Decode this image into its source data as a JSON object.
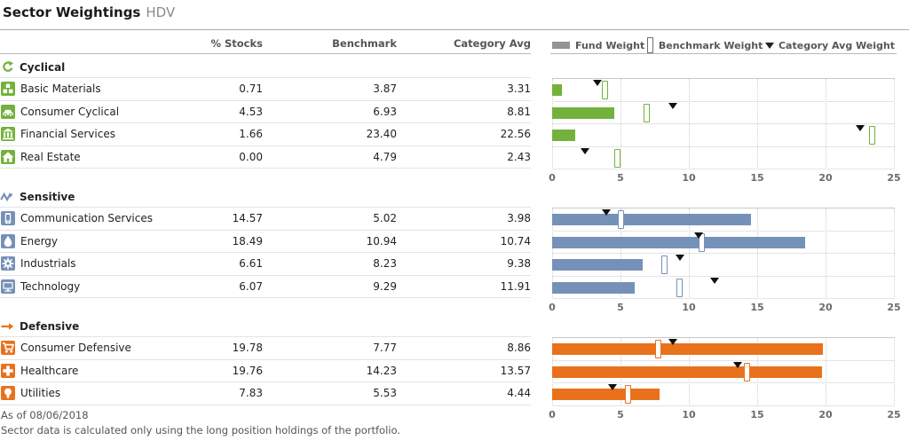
{
  "header": {
    "title": "Sector Weightings",
    "ticker": "HDV"
  },
  "table": {
    "columns": [
      "% Stocks",
      "Benchmark",
      "Category Avg"
    ]
  },
  "legend": {
    "fund": "Fund Weight",
    "benchmark": "Benchmark Weight",
    "category": "Category Avg Weight"
  },
  "colors": {
    "cyclical": "#72b23c",
    "sensitive": "#7691b8",
    "defensive": "#e9711c",
    "triangle": "#111111",
    "legend_swatch": "#949494"
  },
  "sections": [
    {
      "name": "Cyclical",
      "icon": "cyclical-icon",
      "color_key": "cyclical",
      "rows": [
        {
          "label": "Basic Materials",
          "icon": "basic-materials-icon",
          "stocks": "0.71",
          "benchmark": "3.87",
          "category": "3.31"
        },
        {
          "label": "Consumer Cyclical",
          "icon": "consumer-cyclical-icon",
          "stocks": "4.53",
          "benchmark": "6.93",
          "category": "8.81"
        },
        {
          "label": "Financial Services",
          "icon": "financial-services-icon",
          "stocks": "1.66",
          "benchmark": "23.40",
          "category": "22.56"
        },
        {
          "label": "Real Estate",
          "icon": "real-estate-icon",
          "stocks": "0.00",
          "benchmark": "4.79",
          "category": "2.43"
        }
      ]
    },
    {
      "name": "Sensitive",
      "icon": "sensitive-icon",
      "color_key": "sensitive",
      "rows": [
        {
          "label": "Communication Services",
          "icon": "communication-services-icon",
          "stocks": "14.57",
          "benchmark": "5.02",
          "category": "3.98"
        },
        {
          "label": "Energy",
          "icon": "energy-icon",
          "stocks": "18.49",
          "benchmark": "10.94",
          "category": "10.74"
        },
        {
          "label": "Industrials",
          "icon": "industrials-icon",
          "stocks": "6.61",
          "benchmark": "8.23",
          "category": "9.38"
        },
        {
          "label": "Technology",
          "icon": "technology-icon",
          "stocks": "6.07",
          "benchmark": "9.29",
          "category": "11.91"
        }
      ]
    },
    {
      "name": "Defensive",
      "icon": "defensive-icon",
      "color_key": "defensive",
      "rows": [
        {
          "label": "Consumer Defensive",
          "icon": "consumer-defensive-icon",
          "stocks": "19.78",
          "benchmark": "7.77",
          "category": "8.86"
        },
        {
          "label": "Healthcare",
          "icon": "healthcare-icon",
          "stocks": "19.76",
          "benchmark": "14.23",
          "category": "13.57"
        },
        {
          "label": "Utilities",
          "icon": "utilities-icon",
          "stocks": "7.83",
          "benchmark": "5.53",
          "category": "4.44"
        }
      ]
    }
  ],
  "chart_data": [
    {
      "type": "bar",
      "orientation": "horizontal",
      "title": "Cyclical",
      "categories": [
        "Basic Materials",
        "Consumer Cyclical",
        "Financial Services",
        "Real Estate"
      ],
      "series": [
        {
          "name": "Fund Weight",
          "values": [
            0.71,
            4.53,
            1.66,
            0.0
          ]
        },
        {
          "name": "Benchmark Weight",
          "values": [
            3.87,
            6.93,
            23.4,
            4.79
          ]
        },
        {
          "name": "Category Avg Weight",
          "values": [
            3.31,
            8.81,
            22.56,
            2.43
          ]
        }
      ],
      "xlim": [
        0,
        25
      ],
      "ticks": [
        0,
        5,
        10,
        15,
        20,
        25
      ],
      "grid": "dotted-vertical",
      "legend_position": "top"
    },
    {
      "type": "bar",
      "orientation": "horizontal",
      "title": "Sensitive",
      "categories": [
        "Communication Services",
        "Energy",
        "Industrials",
        "Technology"
      ],
      "series": [
        {
          "name": "Fund Weight",
          "values": [
            14.57,
            18.49,
            6.61,
            6.07
          ]
        },
        {
          "name": "Benchmark Weight",
          "values": [
            5.02,
            10.94,
            8.23,
            9.29
          ]
        },
        {
          "name": "Category Avg Weight",
          "values": [
            3.98,
            10.74,
            9.38,
            11.91
          ]
        }
      ],
      "xlim": [
        0,
        25
      ],
      "ticks": [
        0,
        5,
        10,
        15,
        20,
        25
      ],
      "grid": "dotted-vertical",
      "legend_position": "top"
    },
    {
      "type": "bar",
      "orientation": "horizontal",
      "title": "Defensive",
      "categories": [
        "Consumer Defensive",
        "Healthcare",
        "Utilities"
      ],
      "series": [
        {
          "name": "Fund Weight",
          "values": [
            19.78,
            19.76,
            7.83
          ]
        },
        {
          "name": "Benchmark Weight",
          "values": [
            7.77,
            14.23,
            5.53
          ]
        },
        {
          "name": "Category Avg Weight",
          "values": [
            8.86,
            13.57,
            4.44
          ]
        }
      ],
      "xlim": [
        0,
        25
      ],
      "ticks": [
        0,
        5,
        10,
        15,
        20,
        25
      ],
      "grid": "dotted-vertical",
      "legend_position": "top"
    }
  ],
  "footnotes": {
    "as_of": "As of 08/06/2018",
    "note": "Sector data is calculated only using the long position holdings of the portfolio."
  }
}
